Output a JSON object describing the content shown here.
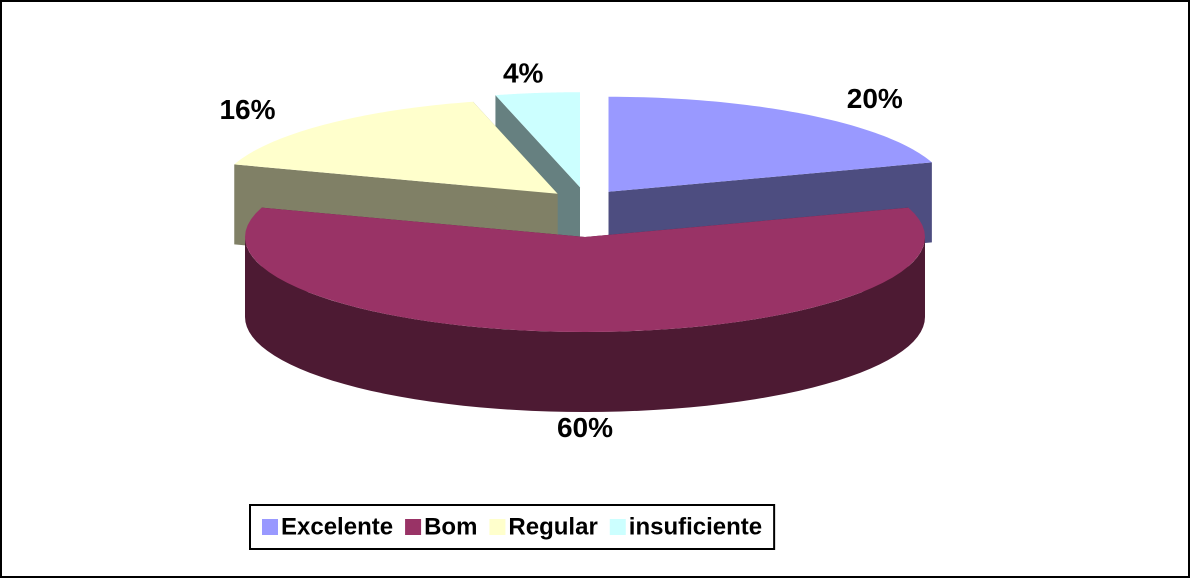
{
  "chart_data": {
    "type": "pie3d",
    "categories": [
      "Excelente",
      "Bom",
      "Regular",
      "insuficiente"
    ],
    "values": [
      20,
      60,
      16,
      4
    ],
    "value_labels": [
      "20%",
      "60%",
      "16%",
      "4%"
    ],
    "colors": [
      "#9999ff",
      "#993366",
      "#ffffcc",
      "#ccffff"
    ],
    "legend": "bottom"
  }
}
